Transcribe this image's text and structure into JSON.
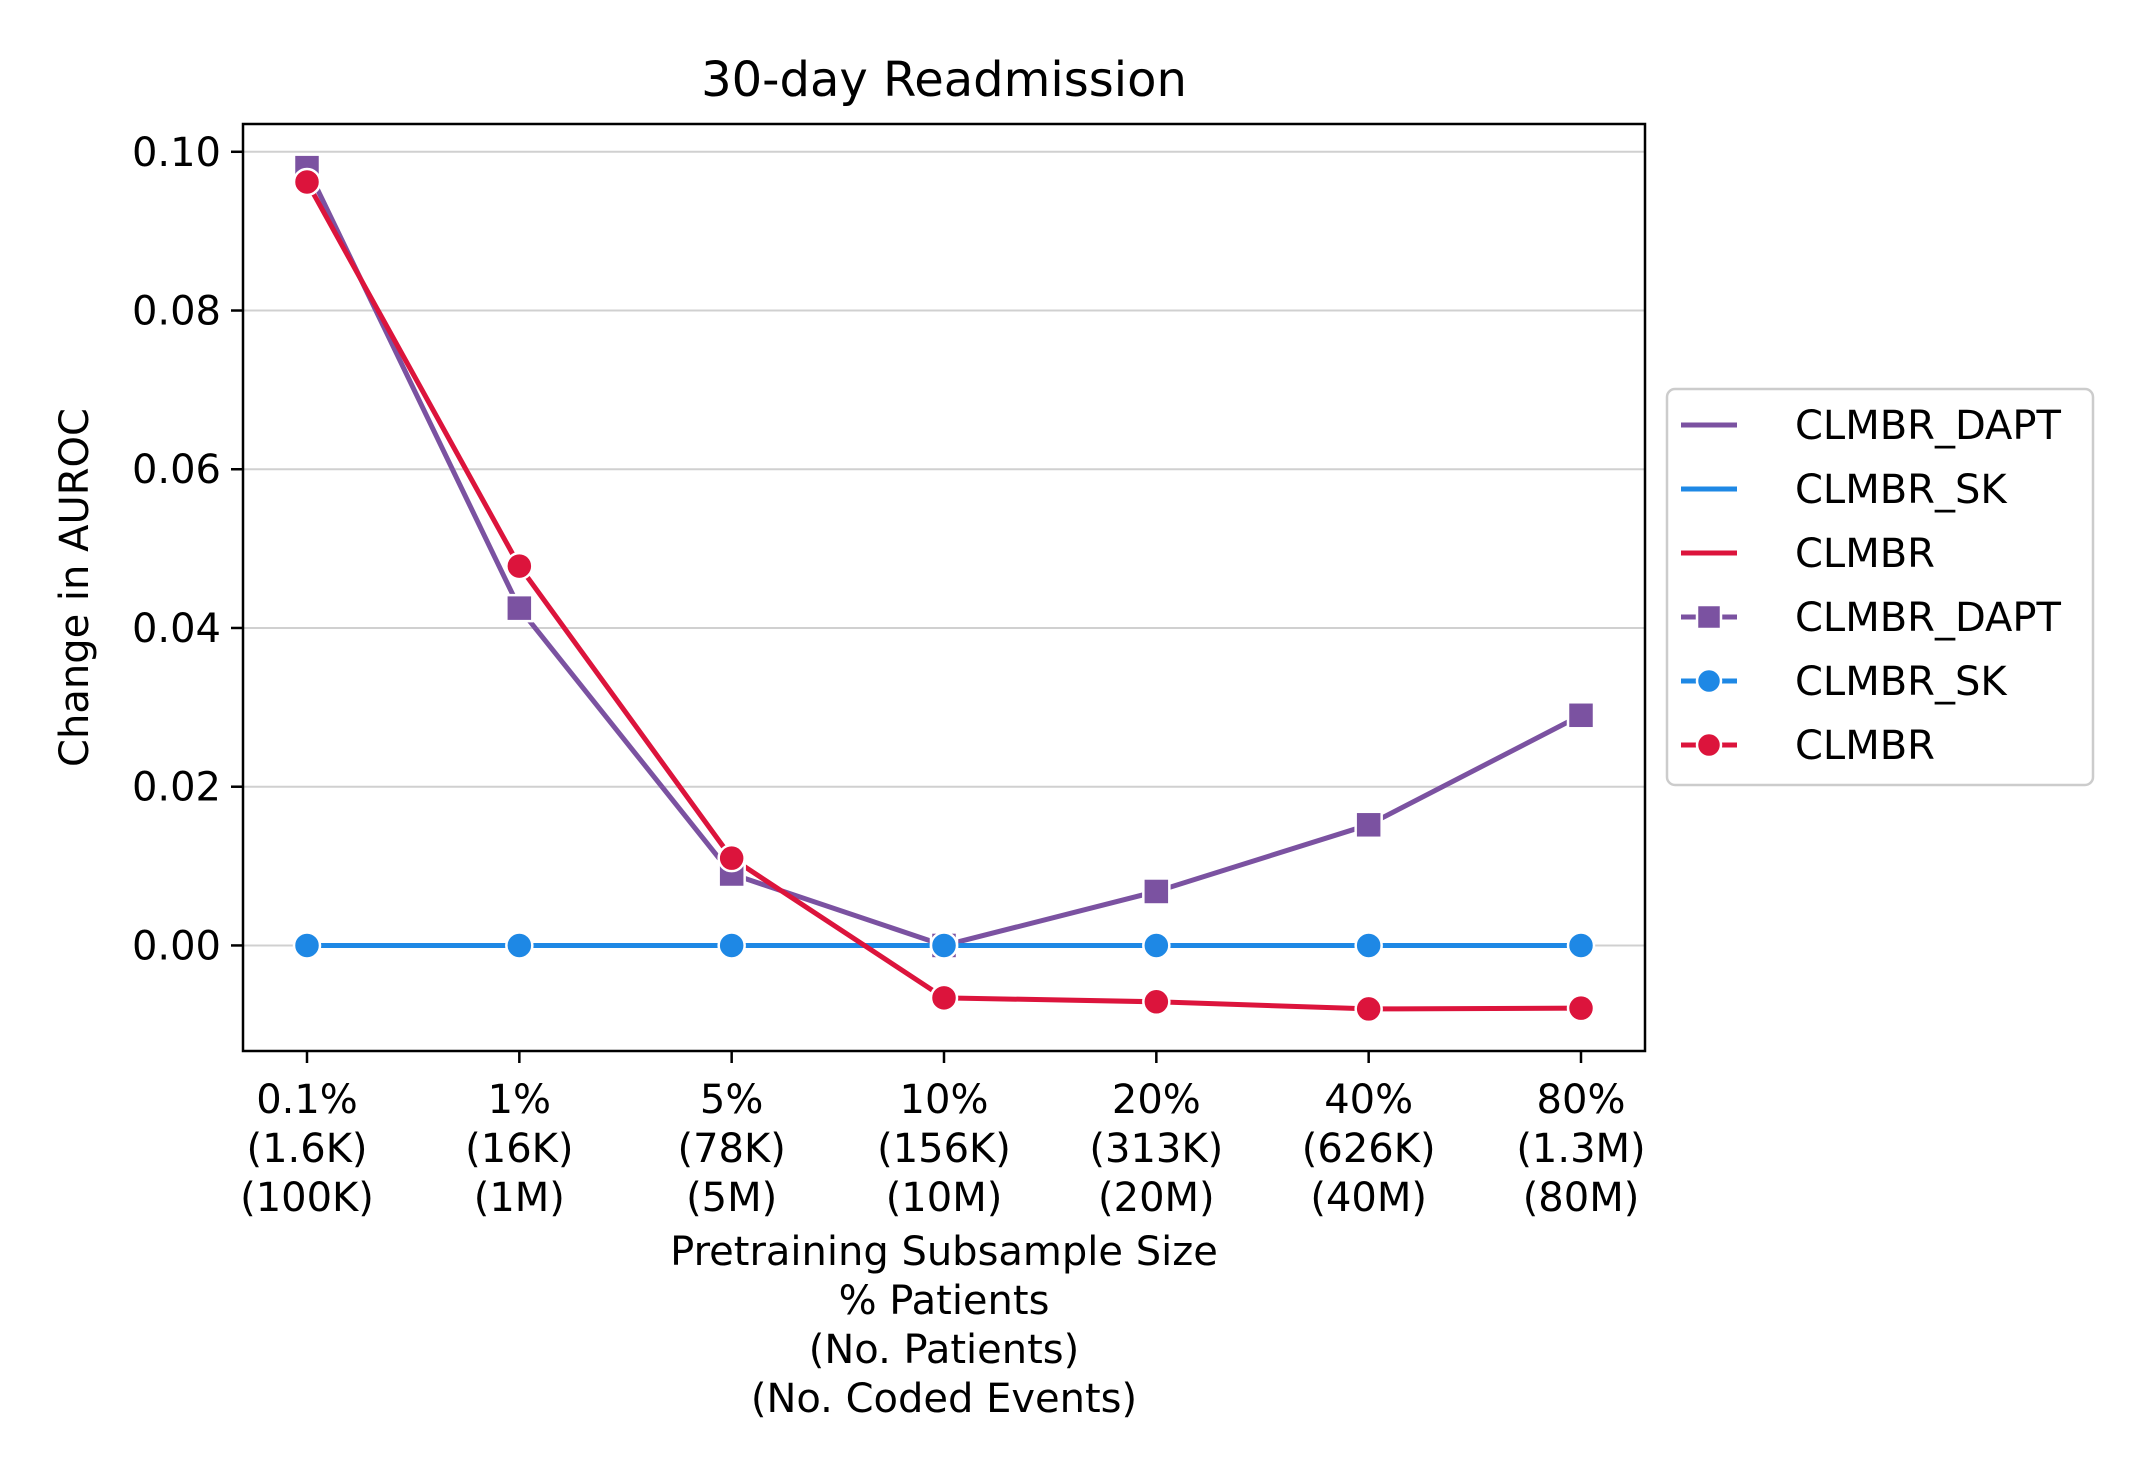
{
  "chart_data": {
    "type": "line",
    "title": "30-day Readmission",
    "xlabel": [
      "Pretraining Subsample Size",
      "% Patients",
      "(No. Patients)",
      "(No. Coded Events)"
    ],
    "ylabel": "Change in AUROC",
    "categories": [
      [
        "0.1%",
        "(1.6K)",
        "(100K)"
      ],
      [
        "1%",
        "(16K)",
        "(1M)"
      ],
      [
        "5%",
        "(78K)",
        "(5M)"
      ],
      [
        "10%",
        "(156K)",
        "(10M)"
      ],
      [
        "20%",
        "(313K)",
        "(20M)"
      ],
      [
        "40%",
        "(626K)",
        "(40M)"
      ],
      [
        "80%",
        "(1.3M)",
        "(80M)"
      ]
    ],
    "ylim": [
      -0.0133,
      0.1035
    ],
    "yticks": [
      "0.00",
      "0.02",
      "0.04",
      "0.06",
      "0.08",
      "0.10"
    ],
    "ytick_values": [
      0.0,
      0.02,
      0.04,
      0.06,
      0.08,
      0.1
    ],
    "grid": "horizontal",
    "legend_position": "right-outside",
    "series": [
      {
        "name": "CLMBR_DAPT",
        "color": "#7b52a1",
        "marker": "square",
        "values": [
          0.098,
          0.0425,
          0.009,
          0.0,
          0.0068,
          0.0152,
          0.029
        ]
      },
      {
        "name": "CLMBR_SK",
        "color": "#1e88e5",
        "marker": "circle",
        "values": [
          0.0,
          0.0,
          0.0,
          0.0,
          0.0,
          0.0,
          0.0
        ]
      },
      {
        "name": "CLMBR",
        "color": "#dc143c",
        "marker": "circle",
        "values": [
          0.0962,
          0.0478,
          0.011,
          -0.0066,
          -0.0071,
          -0.008,
          -0.0079
        ]
      }
    ],
    "legend": [
      {
        "label": "CLMBR_DAPT",
        "color": "#7b52a1",
        "marker": "none"
      },
      {
        "label": "CLMBR_SK",
        "color": "#1e88e5",
        "marker": "none"
      },
      {
        "label": "CLMBR",
        "color": "#dc143c",
        "marker": "none"
      },
      {
        "label": "CLMBR_DAPT",
        "color": "#7b52a1",
        "marker": "square"
      },
      {
        "label": "CLMBR_SK",
        "color": "#1e88e5",
        "marker": "circle"
      },
      {
        "label": "CLMBR",
        "color": "#dc143c",
        "marker": "circle"
      }
    ]
  }
}
